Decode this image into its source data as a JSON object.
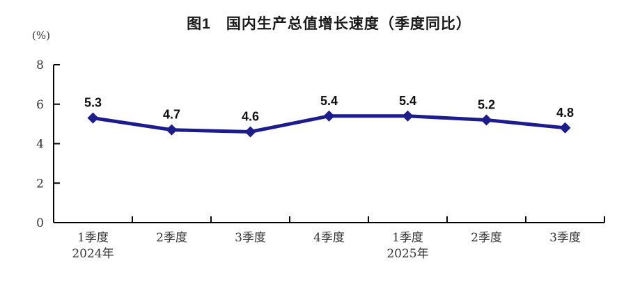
{
  "header": {
    "title": "图1　国内生产总值增长速度（季度同比）",
    "unit_label": "(%)"
  },
  "chart_data": {
    "type": "line",
    "title": "图1　国内生产总值增长速度（季度同比）",
    "ylabel": "(%)",
    "categories": [
      "1季度",
      "2季度",
      "3季度",
      "4季度",
      "1季度",
      "2季度",
      "3季度"
    ],
    "category_sublabels": [
      "2024年",
      "",
      "",
      "",
      "2025年",
      "",
      ""
    ],
    "series": [
      {
        "name": "国内生产总值增长速度",
        "values": [
          5.3,
          4.7,
          4.6,
          5.4,
          5.4,
          5.2,
          4.8
        ]
      }
    ],
    "ylim": [
      0,
      8
    ],
    "yticks": [
      0,
      2,
      4,
      6,
      8
    ],
    "grid": false,
    "legend_position": "none",
    "line_color": "#1c1c8c",
    "marker": "diamond",
    "axis_color": "#000000"
  }
}
